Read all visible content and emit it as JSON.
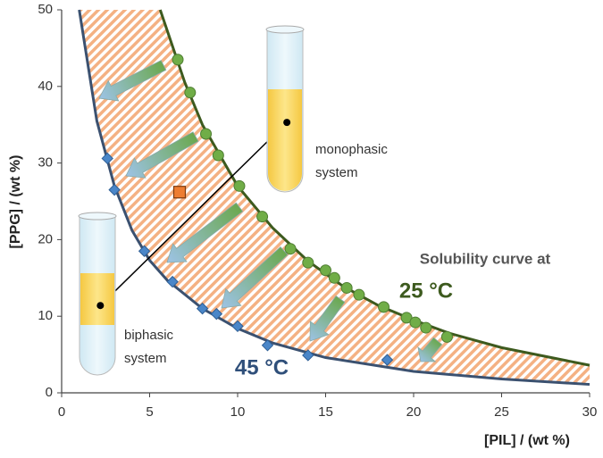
{
  "chart_data": {
    "type": "scatter",
    "xlabel": "[PIL] / (wt %)",
    "ylabel": "[PPG] / (wt %)",
    "xlim": [
      0,
      30
    ],
    "ylim": [
      0,
      50
    ],
    "xticks": [
      0,
      5,
      10,
      15,
      20,
      25,
      30
    ],
    "yticks": [
      0,
      10,
      20,
      30,
      40,
      50
    ],
    "region_color": "#f4b183",
    "series": [
      {
        "marker": "line",
        "color": "#3d5a1e",
        "x": [
          5.6,
          7,
          8,
          10,
          12,
          14,
          16,
          18,
          20,
          22,
          25,
          30
        ],
        "values": [
          50,
          40.5,
          35,
          27,
          21.5,
          17.2,
          13.9,
          11.4,
          9.5,
          7.8,
          5.9,
          3.6
        ]
      },
      {
        "marker": "line",
        "color": "#3b5170",
        "x": [
          1.0,
          2,
          3,
          4,
          5,
          6,
          8,
          10,
          12,
          15,
          20,
          25,
          30
        ],
        "values": [
          50,
          35.5,
          27,
          21.2,
          17.3,
          14.7,
          11,
          8.4,
          6.5,
          4.6,
          2.8,
          1.8,
          1.1
        ]
      },
      {
        "marker": "circle",
        "color": "#70ad47",
        "x": [
          6.6,
          7.3,
          8.2,
          8.9,
          10.1,
          11.4,
          13.0,
          14.0,
          15.0,
          15.5,
          16.2,
          16.9,
          18.3,
          19.6,
          20.1,
          20.7,
          21.9
        ],
        "values": [
          43.5,
          39.2,
          33.8,
          31,
          27,
          23,
          18.8,
          17,
          16,
          15,
          13.7,
          12.8,
          11.2,
          9.8,
          9.2,
          8.5,
          7.3
        ]
      },
      {
        "marker": "diamond",
        "color": "#4a86c8",
        "x": [
          2.6,
          3.0,
          4.7,
          6.3,
          8.0,
          8.8,
          10.0,
          11.7,
          14.0,
          18.5
        ],
        "values": [
          30.6,
          26.5,
          18.5,
          14.5,
          11,
          10.3,
          8.7,
          6.2,
          4.9,
          4.3
        ]
      },
      {
        "marker": "tie",
        "color": "#000000",
        "x": [
          2.2,
          12.8
        ],
        "values": [
          11.4,
          35.3
        ]
      },
      {
        "marker": "square",
        "color": "#ed7d31",
        "x": [
          6.7
        ],
        "values": [
          26.2
        ]
      }
    ],
    "annotations": [
      "Solubility curve at",
      "25 °C",
      "45 °C",
      "monophasic",
      "system",
      "biphasic",
      "system"
    ]
  }
}
